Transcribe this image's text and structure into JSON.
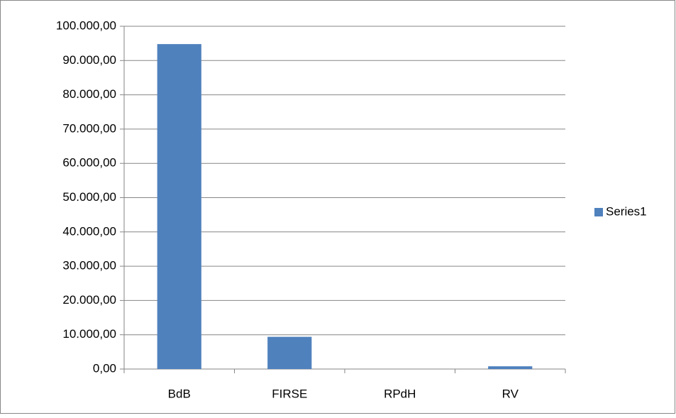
{
  "chart_data": {
    "type": "bar",
    "categories": [
      "BdB",
      "FIRSE",
      "RPdH",
      "RV"
    ],
    "series": [
      {
        "name": "Series1",
        "color": "#4f81bd",
        "values": [
          94800,
          9400,
          0,
          800
        ]
      }
    ],
    "ylim": [
      0,
      100000
    ],
    "yticks": [
      {
        "value": 0,
        "label": "0,00"
      },
      {
        "value": 10000,
        "label": "10.000,00"
      },
      {
        "value": 20000,
        "label": "20.000,00"
      },
      {
        "value": 30000,
        "label": "30.000,00"
      },
      {
        "value": 40000,
        "label": "40.000,00"
      },
      {
        "value": 50000,
        "label": "50.000,00"
      },
      {
        "value": 60000,
        "label": "60.000,00"
      },
      {
        "value": 70000,
        "label": "70.000,00"
      },
      {
        "value": 80000,
        "label": "80.000,00"
      },
      {
        "value": 90000,
        "label": "90.000,00"
      },
      {
        "value": 100000,
        "label": "100.000,00"
      }
    ],
    "grid": true,
    "legend": "right"
  }
}
